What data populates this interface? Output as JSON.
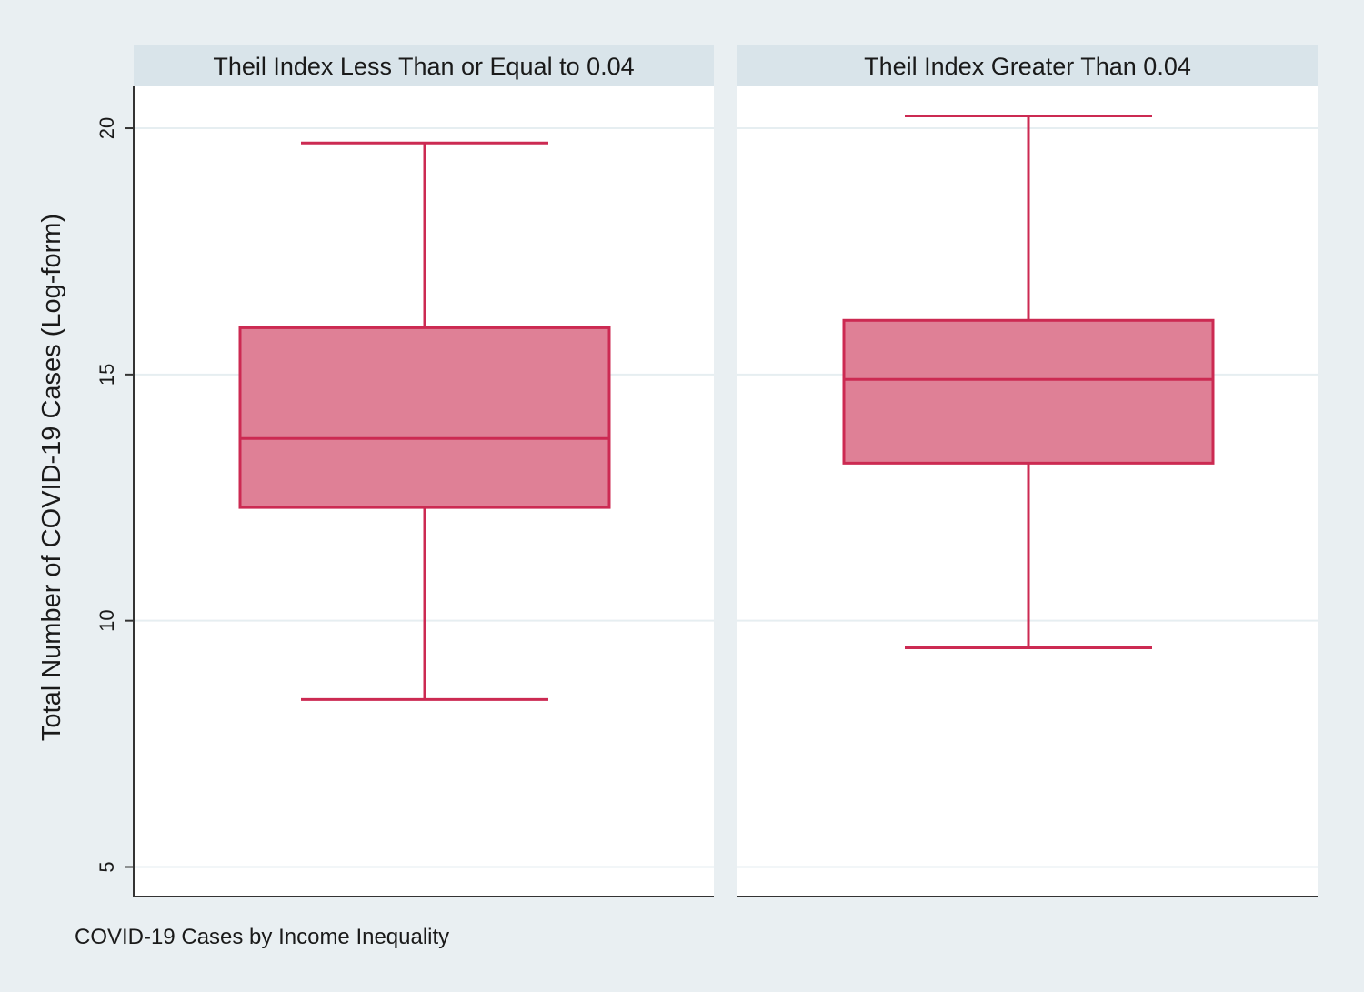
{
  "chart_data": {
    "type": "box",
    "y_label": "Total Number of COVID-19 Cases (Log-form)",
    "caption": "COVID-19 Cases by Income Inequality",
    "ylim": [
      4.4,
      20.85
    ],
    "y_ticks": [
      5,
      10,
      15,
      20
    ],
    "y_tick_labels": [
      "5",
      "10",
      "15",
      "20"
    ],
    "grid": true,
    "box_color": "#df8096",
    "box_stroke_color": "#cc2a52",
    "panels": [
      {
        "title": "Theil Index Less Than  or Equal to 0.04",
        "whisker_low": 8.4,
        "q1": 12.3,
        "median": 13.7,
        "q3": 15.95,
        "whisker_high": 19.7
      },
      {
        "title": "Theil Index Greater Than 0.04",
        "whisker_low": 9.45,
        "q1": 13.2,
        "median": 14.9,
        "q3": 16.1,
        "whisker_high": 20.25
      }
    ]
  }
}
